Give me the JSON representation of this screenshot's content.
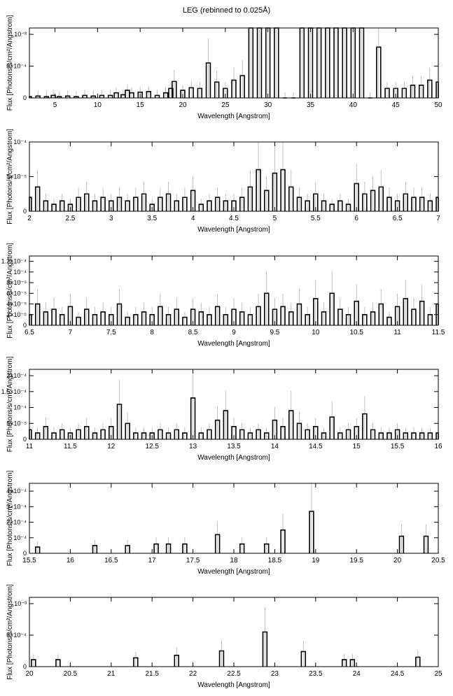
{
  "title": "LEG (rebinned to 0.025Å)",
  "colors": {
    "frame": "#000000",
    "spectrum": "#000000",
    "error_bar": "#b0b0b0",
    "background": "#ffffff"
  },
  "chart_data": [
    {
      "type": "step",
      "xlabel": "Wavelength [Angstrom]",
      "ylabel": "Flux [Photons/s/cm²/Angstrom]",
      "xlim": [
        2,
        50
      ],
      "ylim": [
        0,
        0.0011
      ],
      "xticks": [
        5,
        10,
        15,
        20,
        25,
        30,
        35,
        40,
        45,
        50
      ],
      "yticks": [
        {
          "value": 0,
          "label": "0"
        },
        {
          "value": 0.0005,
          "label": "5×10⁻⁴"
        },
        {
          "value": 0.001,
          "label": "10⁻³"
        }
      ],
      "series": [
        {
          "x": [
            2.0,
            3.0,
            4.0,
            4.8,
            5.5,
            6.5,
            7.5,
            8.5,
            9.5,
            10.5,
            11.5,
            12.2,
            13.0,
            13.5,
            14.0,
            15.0,
            16.0,
            17.0,
            18.0,
            18.6,
            19.0,
            20.0,
            21.0,
            22.0,
            23.0,
            24.0,
            25.0,
            26.0,
            27.0,
            28.0,
            29.0,
            30.0,
            31.0,
            32.0,
            33.0,
            34.0,
            35.0,
            36.0,
            37.0,
            38.0,
            39.0,
            40.0,
            41.0,
            42.0,
            43.0,
            44.0,
            45.0,
            46.0,
            47.0,
            48.0,
            49.0,
            50.0
          ],
          "y": [
            2e-05,
            3e-05,
            2e-05,
            4e-05,
            2e-05,
            3e-05,
            2e-05,
            4e-05,
            3e-05,
            4e-05,
            4e-05,
            8e-05,
            5e-05,
            0.00012,
            8e-05,
            9e-05,
            0.0001,
            4e-05,
            8e-05,
            0.00015,
            0.00026,
            0.00012,
            0.00016,
            0.00015,
            0.00055,
            0.00025,
            0.00015,
            0.00028,
            0.00035,
            0.0011,
            0.0011,
            0.0011,
            0.0011,
            0.0,
            0.0,
            0.0011,
            0.0011,
            0.0011,
            0.0011,
            0.0011,
            0.0011,
            0.0011,
            0.0011,
            0.0,
            0.0008,
            0.00015,
            0.00015,
            0.00015,
            0.0002,
            0.0002,
            0.00028,
            0.00025
          ]
        }
      ]
    },
    {
      "type": "step",
      "xlabel": "Wavelength [Angstrom]",
      "ylabel": "Flux [Photons/s/cm²/Angstrom]",
      "xlim": [
        2,
        7
      ],
      "ylim": [
        0,
        0.0001
      ],
      "xticks": [
        2,
        2.5,
        3,
        3.5,
        4,
        4.5,
        5,
        5.5,
        6,
        6.5,
        7
      ],
      "yticks": [
        {
          "value": 0,
          "label": "0"
        },
        {
          "value": 5e-05,
          "label": "5×10⁻⁵"
        },
        {
          "value": 0.0001,
          "label": "10⁻⁴"
        }
      ],
      "series": [
        {
          "x": [
            2.0,
            2.1,
            2.2,
            2.3,
            2.4,
            2.5,
            2.6,
            2.7,
            2.8,
            2.9,
            3.0,
            3.1,
            3.2,
            3.3,
            3.4,
            3.5,
            3.6,
            3.7,
            3.8,
            3.9,
            4.0,
            4.1,
            4.2,
            4.3,
            4.4,
            4.5,
            4.6,
            4.7,
            4.8,
            4.9,
            5.0,
            5.1,
            5.2,
            5.3,
            5.4,
            5.5,
            5.6,
            5.7,
            5.8,
            5.9,
            6.0,
            6.1,
            6.2,
            6.3,
            6.4,
            6.5,
            6.6,
            6.7,
            6.8,
            6.9,
            7.0
          ],
          "y": [
            2e-05,
            3.5e-05,
            1.5e-05,
            1e-05,
            1.5e-05,
            1e-05,
            2e-05,
            2.5e-05,
            1.5e-05,
            2e-05,
            1.5e-05,
            2e-05,
            1.5e-05,
            2e-05,
            2.5e-05,
            1e-05,
            2e-05,
            2.5e-05,
            1.5e-05,
            2e-05,
            3e-05,
            1e-05,
            1.5e-05,
            2e-05,
            1.5e-05,
            1.5e-05,
            2e-05,
            3.5e-05,
            6e-05,
            3e-05,
            5.5e-05,
            6e-05,
            3.5e-05,
            2e-05,
            1.5e-05,
            2.5e-05,
            1.5e-05,
            1e-05,
            1.5e-05,
            1e-05,
            4e-05,
            2.5e-05,
            3e-05,
            3.5e-05,
            2e-05,
            1.5e-05,
            2.5e-05,
            2e-05,
            2e-05,
            1.5e-05,
            2e-05
          ]
        }
      ]
    },
    {
      "type": "step",
      "xlabel": "Wavelength [Angstrom]",
      "ylabel": "Flux [Photons/s/cm²/Angstrom]",
      "xlim": [
        6.5,
        11.5
      ],
      "ylim": [
        0,
        0.00013
      ],
      "xticks": [
        6.5,
        7,
        7.5,
        8,
        8.5,
        9,
        9.5,
        10,
        10.5,
        11,
        11.5
      ],
      "yticks": [
        {
          "value": 0,
          "label": "0"
        },
        {
          "value": 2e-05,
          "label": "2×10⁻⁵"
        },
        {
          "value": 4e-05,
          "label": "4×10⁻⁵"
        },
        {
          "value": 6e-05,
          "label": "6×10⁻⁵"
        },
        {
          "value": 8e-05,
          "label": "8×10⁻⁵"
        },
        {
          "value": 0.0001,
          "label": "10⁻⁴"
        },
        {
          "value": 0.00012,
          "label": "1.2×10⁻⁴"
        }
      ],
      "series": [
        {
          "x": [
            6.5,
            6.6,
            6.7,
            6.8,
            6.9,
            7.0,
            7.1,
            7.2,
            7.3,
            7.4,
            7.5,
            7.6,
            7.7,
            7.8,
            7.9,
            8.0,
            8.1,
            8.2,
            8.3,
            8.4,
            8.5,
            8.6,
            8.7,
            8.8,
            8.9,
            9.0,
            9.1,
            9.2,
            9.3,
            9.4,
            9.5,
            9.6,
            9.7,
            9.8,
            9.9,
            10.0,
            10.1,
            10.2,
            10.3,
            10.4,
            10.5,
            10.6,
            10.7,
            10.8,
            10.9,
            11.0,
            11.1,
            11.2,
            11.3,
            11.4,
            11.5
          ],
          "y": [
            2e-05,
            4e-05,
            2.5e-05,
            3e-05,
            2e-05,
            3.5e-05,
            1.5e-05,
            3e-05,
            2e-05,
            2.5e-05,
            2e-05,
            4e-05,
            1.5e-05,
            2e-05,
            2.5e-05,
            2e-05,
            3.5e-05,
            2e-05,
            3e-05,
            1.5e-05,
            3e-05,
            2.5e-05,
            2e-05,
            3.5e-05,
            2e-05,
            3e-05,
            2.5e-05,
            2e-05,
            3.5e-05,
            6e-05,
            3e-05,
            3.5e-05,
            2.5e-05,
            4e-05,
            2e-05,
            5e-05,
            2.5e-05,
            6e-05,
            3e-05,
            2e-05,
            4.5e-05,
            2e-05,
            2.5e-05,
            4e-05,
            1.5e-05,
            3.5e-05,
            5e-05,
            3e-05,
            4.5e-05,
            2e-05,
            4e-05
          ]
        }
      ]
    },
    {
      "type": "step",
      "xlabel": "Wavelength [Angstrom]",
      "ylabel": "Flux [Photons/s/cm²/Angstrom]",
      "xlim": [
        11,
        16
      ],
      "ylim": [
        0,
        0.00022
      ],
      "xticks": [
        11,
        11.5,
        12,
        12.5,
        13,
        13.5,
        14,
        14.5,
        15,
        15.5,
        16
      ],
      "yticks": [
        {
          "value": 0,
          "label": "0"
        },
        {
          "value": 5e-05,
          "label": "5×10⁻⁵"
        },
        {
          "value": 0.0001,
          "label": "10⁻⁴"
        },
        {
          "value": 0.00015,
          "label": "1.5×10⁻⁴"
        },
        {
          "value": 0.0002,
          "label": "2×10⁻⁴"
        }
      ],
      "series": [
        {
          "x": [
            11.0,
            11.1,
            11.2,
            11.3,
            11.4,
            11.5,
            11.6,
            11.7,
            11.8,
            11.9,
            12.0,
            12.1,
            12.2,
            12.3,
            12.4,
            12.5,
            12.6,
            12.7,
            12.8,
            12.9,
            13.0,
            13.1,
            13.2,
            13.3,
            13.4,
            13.5,
            13.6,
            13.7,
            13.8,
            13.9,
            14.0,
            14.1,
            14.2,
            14.3,
            14.4,
            14.5,
            14.6,
            14.7,
            14.8,
            14.9,
            15.0,
            15.1,
            15.2,
            15.3,
            15.4,
            15.5,
            15.6,
            15.7,
            15.8,
            15.9,
            16.0
          ],
          "y": [
            3e-05,
            2e-05,
            4e-05,
            2e-05,
            3e-05,
            2e-05,
            3e-05,
            4e-05,
            2e-05,
            3e-05,
            4e-05,
            0.00011,
            5e-05,
            2e-05,
            2e-05,
            2e-05,
            3e-05,
            2e-05,
            3e-05,
            2e-05,
            0.00013,
            2e-05,
            3e-05,
            6e-05,
            9e-05,
            4e-05,
            3e-05,
            2e-05,
            3e-05,
            2e-05,
            6e-05,
            4e-05,
            9e-05,
            5e-05,
            3e-05,
            4e-05,
            2e-05,
            7e-05,
            2e-05,
            3e-05,
            4e-05,
            8e-05,
            3e-05,
            2e-05,
            2e-05,
            3e-05,
            2e-05,
            2e-05,
            2e-05,
            2e-05,
            2e-05
          ]
        }
      ]
    },
    {
      "type": "step",
      "xlabel": "Wavelength [Angstrom]",
      "ylabel": "Flux [Photons/s/cm²/Angstrom]",
      "xlim": [
        15.5,
        20.5
      ],
      "ylim": [
        0,
        0.00045
      ],
      "xticks": [
        15.5,
        16,
        16.5,
        17,
        17.5,
        18,
        18.5,
        19,
        19.5,
        20,
        20.5
      ],
      "yticks": [
        {
          "value": 0,
          "label": "0"
        },
        {
          "value": 0.0001,
          "label": "10⁻⁴"
        },
        {
          "value": 0.0002,
          "label": "2×10⁻⁴"
        },
        {
          "value": 0.0003,
          "label": "3×10⁻⁴"
        },
        {
          "value": 0.0004,
          "label": "4×10⁻⁴"
        }
      ],
      "series": [
        {
          "x": [
            15.6,
            16.3,
            16.7,
            17.05,
            17.2,
            17.4,
            17.8,
            18.1,
            18.4,
            18.6,
            18.95,
            20.05,
            20.35
          ],
          "y": [
            4e-05,
            5e-05,
            5e-05,
            6e-05,
            6e-05,
            6e-05,
            0.00012,
            6e-05,
            6e-05,
            0.00015,
            0.00027,
            0.00011,
            0.00011
          ]
        }
      ]
    },
    {
      "type": "step",
      "xlabel": "Wavelength [Angstrom]",
      "ylabel": "Flux [Photons/s/cm²/Angstrom]",
      "xlim": [
        20,
        25
      ],
      "ylim": [
        0,
        0.0011
      ],
      "xticks": [
        20,
        20.5,
        21,
        21.5,
        22,
        22.5,
        23,
        23.5,
        24,
        24.5,
        25
      ],
      "yticks": [
        {
          "value": 0,
          "label": "0"
        },
        {
          "value": 0.0005,
          "label": "5×10⁻⁴"
        },
        {
          "value": 0.001,
          "label": "10⁻³"
        }
      ],
      "series": [
        {
          "x": [
            20.05,
            20.35,
            21.3,
            21.8,
            22.35,
            22.88,
            23.35,
            23.85,
            23.95,
            24.75
          ],
          "y": [
            0.00011,
            0.00011,
            0.00014,
            0.00018,
            0.00025,
            0.00055,
            0.00024,
            0.00011,
            0.00011,
            0.00015
          ]
        }
      ]
    }
  ]
}
